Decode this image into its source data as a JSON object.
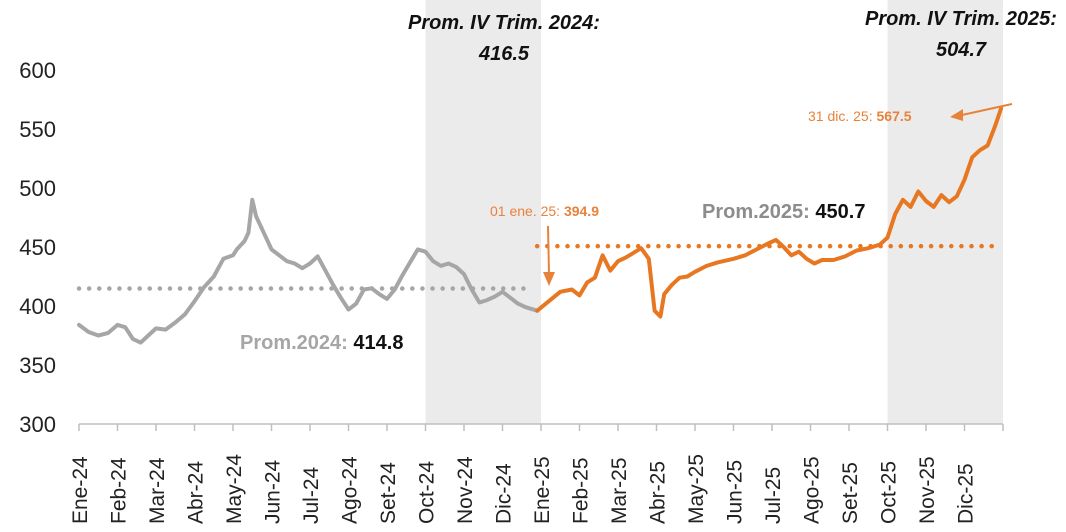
{
  "chart_data": {
    "type": "line",
    "title": "",
    "xlabel": "",
    "ylabel": "",
    "ylim": [
      300,
      600
    ],
    "yticks": [
      300,
      350,
      400,
      450,
      500,
      550,
      600
    ],
    "grid": false,
    "categories": [
      "Ene-24",
      "Feb-24",
      "Mar-24",
      "Abr-24",
      "May-24",
      "Jun-24",
      "Jul-24",
      "Ago-24",
      "Set-24",
      "Oct-24",
      "Nov-24",
      "Dic-24",
      "Ene-25",
      "Feb-25",
      "Mar-25",
      "Abr-25",
      "May-25",
      "Jun-25",
      "Jul-25",
      "Ago-25",
      "Set-25",
      "Oct-25",
      "Nov-25",
      "Dic-25"
    ],
    "series": [
      {
        "color": "#A6A6A6",
        "points": [
          [
            0.0,
            384
          ],
          [
            0.25,
            378
          ],
          [
            0.5,
            375
          ],
          [
            0.75,
            377
          ],
          [
            1.0,
            384
          ],
          [
            1.2,
            382
          ],
          [
            1.4,
            372
          ],
          [
            1.6,
            369
          ],
          [
            1.8,
            375
          ],
          [
            2.0,
            381
          ],
          [
            2.25,
            380
          ],
          [
            2.5,
            386
          ],
          [
            2.75,
            393
          ],
          [
            3.0,
            404
          ],
          [
            3.25,
            416
          ],
          [
            3.5,
            425
          ],
          [
            3.75,
            440
          ],
          [
            4.0,
            443
          ],
          [
            4.1,
            448
          ],
          [
            4.3,
            455
          ],
          [
            4.4,
            462
          ],
          [
            4.5,
            490
          ],
          [
            4.6,
            476
          ],
          [
            4.8,
            462
          ],
          [
            5.0,
            448
          ],
          [
            5.2,
            443
          ],
          [
            5.4,
            438
          ],
          [
            5.6,
            436
          ],
          [
            5.8,
            432
          ],
          [
            6.0,
            436
          ],
          [
            6.2,
            442
          ],
          [
            6.4,
            430
          ],
          [
            6.6,
            418
          ],
          [
            6.8,
            407
          ],
          [
            7.0,
            397
          ],
          [
            7.2,
            402
          ],
          [
            7.4,
            414
          ],
          [
            7.6,
            415
          ],
          [
            7.8,
            410
          ],
          [
            8.0,
            406
          ],
          [
            8.2,
            414
          ],
          [
            8.4,
            426
          ],
          [
            8.6,
            437
          ],
          [
            8.8,
            448
          ],
          [
            9.0,
            446
          ],
          [
            9.2,
            438
          ],
          [
            9.4,
            434
          ],
          [
            9.6,
            436
          ],
          [
            9.8,
            433
          ],
          [
            10.0,
            427
          ],
          [
            10.2,
            414
          ],
          [
            10.4,
            403
          ],
          [
            10.6,
            405
          ],
          [
            10.8,
            408
          ],
          [
            11.0,
            412
          ],
          [
            11.2,
            407
          ],
          [
            11.4,
            402
          ],
          [
            11.6,
            399
          ],
          [
            11.9,
            396
          ]
        ]
      },
      {
        "color": "#E87722",
        "points": [
          [
            11.9,
            396
          ],
          [
            12.2,
            404
          ],
          [
            12.5,
            412
          ],
          [
            12.8,
            414
          ],
          [
            13.0,
            409
          ],
          [
            13.2,
            420
          ],
          [
            13.4,
            424
          ],
          [
            13.6,
            443
          ],
          [
            13.8,
            430
          ],
          [
            14.0,
            438
          ],
          [
            14.2,
            441
          ],
          [
            14.4,
            445
          ],
          [
            14.6,
            449
          ],
          [
            14.8,
            440
          ],
          [
            14.95,
            396
          ],
          [
            15.1,
            391
          ],
          [
            15.2,
            410
          ],
          [
            15.4,
            418
          ],
          [
            15.6,
            424
          ],
          [
            15.8,
            425
          ],
          [
            16.0,
            429
          ],
          [
            16.3,
            434
          ],
          [
            16.6,
            437
          ],
          [
            17.0,
            440
          ],
          [
            17.3,
            443
          ],
          [
            17.6,
            448
          ],
          [
            17.9,
            453
          ],
          [
            18.1,
            456
          ],
          [
            18.3,
            450
          ],
          [
            18.5,
            443
          ],
          [
            18.7,
            446
          ],
          [
            18.9,
            440
          ],
          [
            19.1,
            436
          ],
          [
            19.3,
            439
          ],
          [
            19.6,
            439
          ],
          [
            19.9,
            442
          ],
          [
            20.2,
            447
          ],
          [
            20.5,
            449
          ],
          [
            20.8,
            452
          ],
          [
            21.0,
            458
          ],
          [
            21.2,
            478
          ],
          [
            21.4,
            490
          ],
          [
            21.6,
            484
          ],
          [
            21.8,
            497
          ],
          [
            22.0,
            489
          ],
          [
            22.2,
            484
          ],
          [
            22.4,
            494
          ],
          [
            22.6,
            488
          ],
          [
            22.8,
            493
          ],
          [
            23.0,
            507
          ],
          [
            23.2,
            526
          ],
          [
            23.4,
            532
          ],
          [
            23.6,
            536
          ],
          [
            23.8,
            553
          ],
          [
            23.95,
            567.5
          ]
        ]
      }
    ],
    "averages": [
      {
        "label": "Prom.2024:",
        "value": 414.8,
        "value_text": "414.8",
        "x_range": [
          0,
          11.9
        ],
        "color": "#A6A6A6"
      },
      {
        "label": "Prom.2025:",
        "value": 450.7,
        "value_text": "450.7",
        "x_range": [
          11.9,
          24
        ],
        "color": "#E87722"
      }
    ],
    "shaded_regions": [
      {
        "x_range": [
          9.0,
          12.0
        ],
        "label_line1": "Prom. IV Trim. 2024:",
        "label_line2": "416.5"
      },
      {
        "x_range": [
          21.0,
          24.0
        ],
        "label_line1": "Prom. IV Trim. 2025:",
        "label_line2": "504.7"
      }
    ],
    "point_annotations": [
      {
        "label": "01 ene. 25:",
        "value": 394.9,
        "value_text": "394.9",
        "color": "#E8823A"
      },
      {
        "label": "31 dic. 25:",
        "value": 567.5,
        "value_text": "567.5",
        "color": "#E8823A"
      }
    ]
  }
}
